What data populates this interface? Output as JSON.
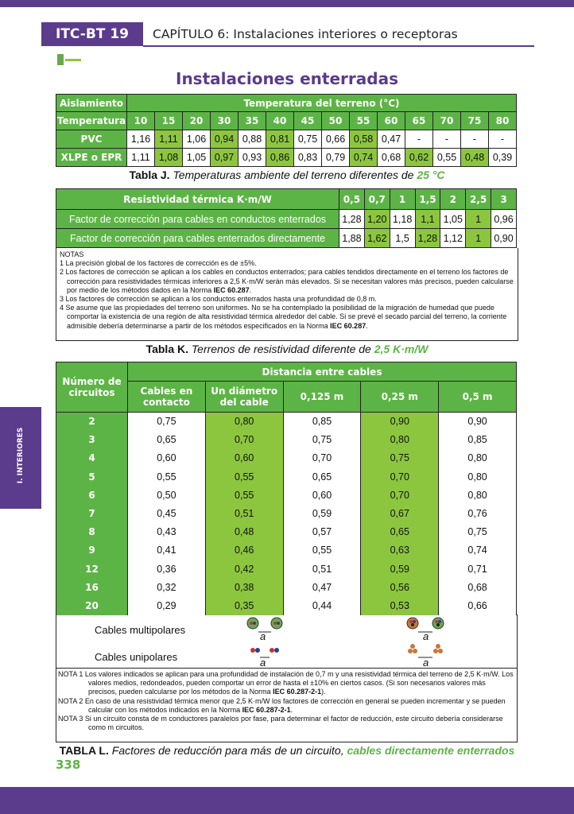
{
  "header": {
    "code": "ITC-BT 19",
    "chapter": "CAPÍTULO 6: Instalaciones interiores o receptoras"
  },
  "title": "Instalaciones enterradas",
  "side_tab": "I. INTERIORES",
  "table_j": {
    "header": [
      "Aislamiento",
      "Temperatura del terreno (°C)"
    ],
    "rows": [
      [
        "Temperatura",
        "10",
        "15",
        "20",
        "30",
        "35",
        "40",
        "45",
        "50",
        "55",
        "60",
        "65",
        "70",
        "75",
        "80"
      ],
      [
        "PVC",
        "1,16",
        "1,11",
        "1,06",
        "0,94",
        "0,88",
        "0,81",
        "0,75",
        "0,66",
        "0,58",
        "0,47",
        "-",
        "-",
        "-",
        "-"
      ],
      [
        "XLPE o EPR",
        "1,11",
        "1,08",
        "1,05",
        "0,97",
        "0,93",
        "0,86",
        "0,83",
        "0,79",
        "0,74",
        "0,68",
        "0,62",
        "0,55",
        "0,48",
        "0,39"
      ]
    ],
    "caption": {
      "label": "Tabla J.",
      "text": " Temperaturas ambiente del terreno diferentes de ",
      "highlight": "25 °C"
    }
  },
  "table_k": {
    "header": [
      "Resistividad térmica K·m/W",
      "0,5",
      "0,7",
      "1",
      "1,5",
      "2",
      "2,5",
      "3"
    ],
    "rows": [
      [
        "Factor de corrección para cables en conductos enterrados",
        "1,28",
        "1,20",
        "1,18",
        "1,1",
        "1,05",
        "1",
        "0,96"
      ],
      [
        "Factor de corrección para cables enterrados directamente",
        "1,88",
        "1,62",
        "1,5",
        "1,28",
        "1,12",
        "1",
        "0,90"
      ]
    ],
    "notes_title": "NOTAS",
    "notes": [
      {
        "text": "1 La precisión global de los factores de corrección es de ±5%."
      },
      {
        "text": "2 Los factores de corrección se aplican a los cables en conductos enterrados; para cables tendidos directamente en el terreno los factores de corrección para resistividades térmicas inferiores a 2,5 K·m/W serán más elevados. Si se necesitan valores más precisos, pueden calcularse por medio de los métodos dados en la Norma ",
        "ref": "IEC 60.287",
        "end": "."
      },
      {
        "text": "3 Los factores de corrección se aplican a los conductos enterrados hasta una profundidad de 0,8 m."
      },
      {
        "text": "4 Se asume que las propiedades del terreno son uniformes. No se ha contemplado la posibilidad de la migración de humedad que puede comportar la existencia de una región de alta resistividad térmica alrededor del cable. Si se prevé el secado parcial del terreno, la corriente admisible debería determinarse a partir de los métodos especificados en la Norma ",
        "ref": "IEC 60.287",
        "end": "."
      }
    ],
    "caption": {
      "label": "Tabla K.",
      "text": " Terrenos de resistividad diferente de ",
      "highlight": "2,5 K·m/W"
    }
  },
  "table_l": {
    "corner": "Número de circuitos",
    "group": "Distancia entre cables",
    "columns": [
      "Cables en contacto",
      "Un diámetro del cable",
      "0,125 m",
      "0,25 m",
      "0,5 m"
    ],
    "rows": [
      [
        "2",
        "0,75",
        "0,80",
        "0,85",
        "0,90",
        "0,90"
      ],
      [
        "3",
        "0,65",
        "0,70",
        "0,75",
        "0,80",
        "0,85"
      ],
      [
        "4",
        "0,60",
        "0,60",
        "0,70",
        "0,75",
        "0,80"
      ],
      [
        "5",
        "0,55",
        "0,55",
        "0,65",
        "0,70",
        "0,80"
      ],
      [
        "6",
        "0,50",
        "0,55",
        "0,60",
        "0,70",
        "0,80"
      ],
      [
        "7",
        "0,45",
        "0,51",
        "0,59",
        "0,67",
        "0,76"
      ],
      [
        "8",
        "0,43",
        "0,48",
        "0,57",
        "0,65",
        "0,75"
      ],
      [
        "9",
        "0,41",
        "0,46",
        "0,55",
        "0,63",
        "0,74"
      ],
      [
        "12",
        "0,36",
        "0,42",
        "0,51",
        "0,59",
        "0,71"
      ],
      [
        "16",
        "0,32",
        "0,38",
        "0,47",
        "0,56",
        "0,68"
      ],
      [
        "20",
        "0,29",
        "0,35",
        "0,44",
        "0,53",
        "0,66"
      ]
    ],
    "diagram_rows": [
      "Cables multipolares",
      "Cables unipolares"
    ],
    "distance_label": "a",
    "notes": [
      {
        "label": "NOTA 1",
        "text": " Los valores indicados se aplican para una profundidad de instalación de 0,7 m y una resistividad térmica del terreno de 2,5 K·m/W. Los valores medios, redondeados, pueden comportar un error de hasta el ±10% en ciertos casos. (Si son necesarios valores más precisos, pueden calcularse por los métodos de la Norma ",
        "ref": "IEC 60.287-2-1",
        "end": ")."
      },
      {
        "label": "NOTA 2",
        "text": " En caso de una resistividad térmica menor que 2,5 K·m/W los factores de corrección en general se pueden incrementar y se pueden calcular con los métodos indicados en la Norma ",
        "ref": "IEC 60.287-2-1",
        "end": "."
      },
      {
        "label": "NOTA 3",
        "text": " Si un circuito consta de m conductores paralelos por fase, para determinar el factor de reducción, este circuito debería considerarse como m circuitos."
      }
    ],
    "caption": {
      "label": "TABLA L.",
      "text": " Factores de reducción para más de un circuito, ",
      "highlight": "cables directamente enterrados"
    }
  },
  "page_number": "338"
}
